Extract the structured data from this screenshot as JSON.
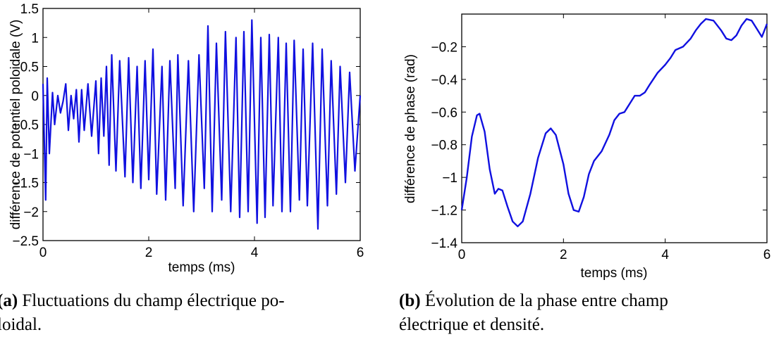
{
  "chart_data": [
    {
      "type": "line",
      "xlabel": "temps (ms)",
      "ylabel": "différence de potentiel poloidale (V)",
      "xlim": [
        0,
        6
      ],
      "ylim": [
        -2.5,
        1.5
      ],
      "xticks": [
        "0",
        "2",
        "4",
        "6"
      ],
      "yticks": [
        "-2.5",
        "-2",
        "-1.5",
        "-1",
        "-0.5",
        "0",
        "0.5",
        "1",
        "1.5"
      ],
      "grid": false,
      "series": [
        {
          "color": "#1010e0",
          "x": [
            0,
            0.05,
            0.08,
            0.12,
            0.18,
            0.22,
            0.28,
            0.33,
            0.38,
            0.43,
            0.48,
            0.53,
            0.58,
            0.63,
            0.68,
            0.73,
            0.78,
            0.85,
            0.92,
            1.0,
            1.05,
            1.1,
            1.15,
            1.2,
            1.25,
            1.3,
            1.38,
            1.45,
            1.55,
            1.62,
            1.7,
            1.78,
            1.85,
            1.93,
            2.0,
            2.08,
            2.15,
            2.25,
            2.32,
            2.4,
            2.5,
            2.55,
            2.65,
            2.75,
            2.85,
            2.95,
            3.05,
            3.12,
            3.2,
            3.28,
            3.38,
            3.45,
            3.55,
            3.65,
            3.72,
            3.8,
            3.88,
            3.95,
            4.05,
            4.12,
            4.2,
            4.28,
            4.35,
            4.45,
            4.52,
            4.6,
            4.68,
            4.75,
            4.85,
            4.92,
            5.0,
            5.1,
            5.2,
            5.28,
            5.38,
            5.45,
            5.55,
            5.62,
            5.72,
            5.8,
            5.9,
            6.0
          ],
          "y": [
            0.2,
            -1.8,
            0.3,
            -1.0,
            0.05,
            -0.5,
            0.0,
            -0.3,
            -0.1,
            0.2,
            -0.6,
            0.0,
            -0.4,
            0.1,
            -0.8,
            0.1,
            -0.6,
            0.2,
            -0.7,
            0.25,
            -1.0,
            0.3,
            -0.7,
            0.5,
            -1.2,
            0.7,
            -1.3,
            0.6,
            -1.4,
            0.65,
            -1.5,
            0.5,
            -1.6,
            0.6,
            -1.45,
            0.8,
            -1.7,
            0.5,
            -1.8,
            0.6,
            -1.6,
            0.7,
            -1.9,
            0.6,
            -2.0,
            0.7,
            -1.6,
            1.2,
            -2.0,
            0.9,
            -1.8,
            1.1,
            -2.0,
            1.0,
            -2.1,
            1.1,
            -2.0,
            1.3,
            -2.2,
            1.0,
            -2.1,
            1.05,
            -1.9,
            1.0,
            -2.0,
            0.9,
            -2.0,
            0.95,
            -1.8,
            0.8,
            -1.9,
            0.9,
            -2.3,
            0.8,
            -1.9,
            0.6,
            -1.7,
            0.5,
            -1.5,
            0.4,
            -1.3,
            0.0
          ]
        }
      ]
    },
    {
      "type": "line",
      "xlabel": "temps (ms)",
      "ylabel": "différence de phase (rad)",
      "xlim": [
        0,
        6
      ],
      "ylim": [
        -1.4,
        0
      ],
      "xticks": [
        "0",
        "2",
        "4",
        "6"
      ],
      "yticks": [
        "-1.4",
        "-1.2",
        "-1",
        "-0.8",
        "-0.6",
        "-0.4",
        "-0.2"
      ],
      "grid": false,
      "series": [
        {
          "color": "#1010e0",
          "x": [
            0,
            0.1,
            0.2,
            0.3,
            0.35,
            0.45,
            0.55,
            0.65,
            0.72,
            0.8,
            0.9,
            1.0,
            1.1,
            1.2,
            1.35,
            1.5,
            1.65,
            1.75,
            1.85,
            2.0,
            2.1,
            2.2,
            2.3,
            2.4,
            2.5,
            2.6,
            2.75,
            2.9,
            3.0,
            3.1,
            3.2,
            3.3,
            3.4,
            3.5,
            3.6,
            3.7,
            3.85,
            4.0,
            4.1,
            4.2,
            4.35,
            4.5,
            4.6,
            4.7,
            4.8,
            4.95,
            5.1,
            5.2,
            5.3,
            5.4,
            5.5,
            5.6,
            5.7,
            5.8,
            5.9,
            6.0
          ],
          "y": [
            -1.2,
            -1.0,
            -0.75,
            -0.62,
            -0.61,
            -0.72,
            -0.95,
            -1.1,
            -1.07,
            -1.08,
            -1.18,
            -1.27,
            -1.3,
            -1.27,
            -1.1,
            -0.88,
            -0.73,
            -0.7,
            -0.74,
            -0.92,
            -1.1,
            -1.2,
            -1.21,
            -1.12,
            -0.98,
            -0.9,
            -0.84,
            -0.74,
            -0.65,
            -0.61,
            -0.6,
            -0.55,
            -0.5,
            -0.5,
            -0.48,
            -0.43,
            -0.36,
            -0.31,
            -0.27,
            -0.22,
            -0.2,
            -0.15,
            -0.1,
            -0.06,
            -0.03,
            -0.04,
            -0.1,
            -0.15,
            -0.16,
            -0.13,
            -0.07,
            -0.03,
            -0.04,
            -0.09,
            -0.14,
            -0.06
          ]
        }
      ]
    }
  ],
  "captions": {
    "a": {
      "label": "(a)",
      "text": "Fluctuations du champ électrique po-",
      "text2": "loidal."
    },
    "b": {
      "label": "(b)",
      "text": "Évolution de la phase entre champ",
      "text2": "électrique et densité."
    }
  }
}
